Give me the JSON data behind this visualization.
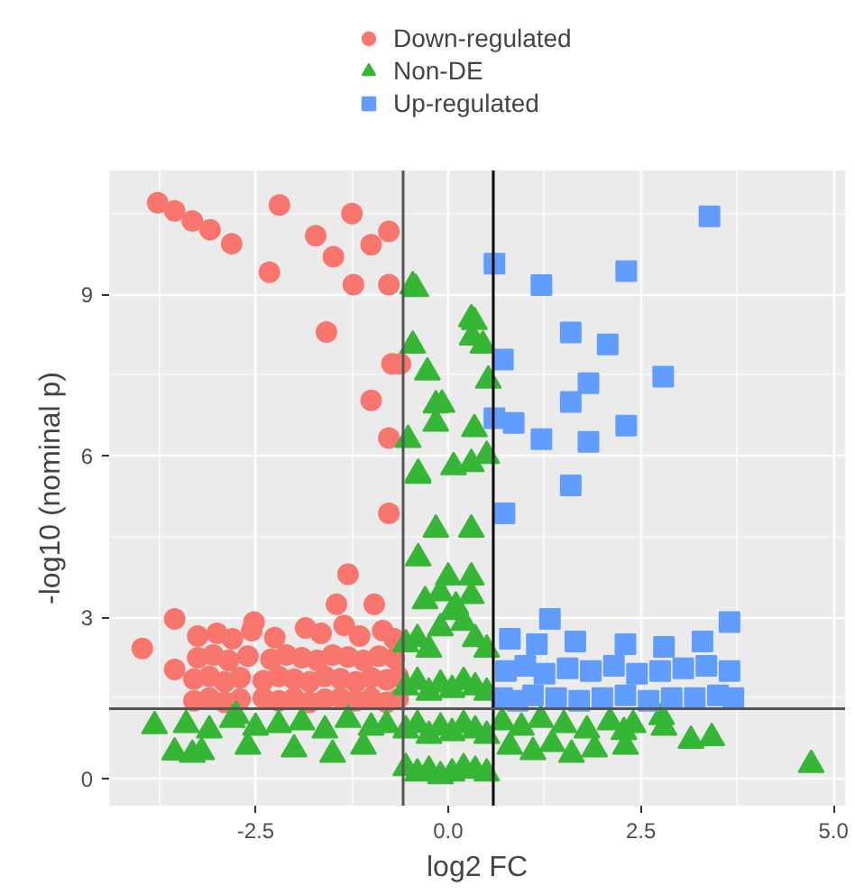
{
  "chart_data": {
    "type": "scatter",
    "xlabel": "log2 FC",
    "ylabel": "-log10 (nominal p)",
    "xlim": [
      -4.4,
      5.15
    ],
    "ylim": [
      -0.5,
      11.3
    ],
    "xticks": [
      {
        "value": -2.5,
        "label": "-2.5"
      },
      {
        "value": 0,
        "label": "0.0"
      },
      {
        "value": 2.5,
        "label": "2.5"
      },
      {
        "value": 5,
        "label": "5.0"
      }
    ],
    "yticks": [
      0,
      3,
      6,
      9
    ],
    "grid": true,
    "legend": "top",
    "ref_lines": [
      {
        "axis": "x",
        "value": -0.585,
        "label": null,
        "color": "#555555"
      },
      {
        "axis": "x",
        "value": 0.585,
        "label": null,
        "color": "#000000"
      },
      {
        "axis": "y",
        "value": 1.301,
        "label": null,
        "color": "#555555"
      }
    ],
    "series": [
      {
        "name": "Down-regulated",
        "color": "#f8766d",
        "marker": "circle",
        "x": [
          -3.77,
          -3.55,
          -3.32,
          -3.09,
          -2.81,
          -2.19,
          -2.32,
          -1.72,
          -1.49,
          -1.25,
          -1.0,
          -0.77,
          -1.23,
          -0.77,
          -1.58,
          -0.73,
          -0.62,
          -1.0,
          -0.77,
          -0.77,
          -1.3,
          -3.97,
          -3.55,
          -3.55,
          -2.52,
          -1.45,
          -0.96,
          -3.3,
          -3.1,
          -2.9,
          -2.7,
          -2.4,
          -2.2,
          -2.0,
          -1.8,
          -1.6,
          -1.4,
          -1.2,
          -1.0,
          -0.8,
          -0.65,
          -3.3,
          -3.1,
          -2.9,
          -2.7,
          -2.4,
          -2.2,
          -2.0,
          -1.8,
          -1.6,
          -1.4,
          -1.2,
          -1.0,
          -0.8,
          -0.65,
          -3.25,
          -3.05,
          -2.85,
          -2.6,
          -2.3,
          -2.1,
          -1.9,
          -1.7,
          -1.5,
          -1.3,
          -1.1,
          -0.9,
          -0.7,
          -3.25,
          -3.0,
          -2.8,
          -2.55,
          -2.25,
          -1.85,
          -1.65,
          -1.35,
          -1.15,
          -0.85,
          -0.7
        ],
        "values": [
          10.7,
          10.55,
          10.36,
          10.2,
          9.94,
          10.66,
          9.41,
          10.09,
          9.7,
          10.5,
          9.92,
          10.17,
          9.18,
          9.18,
          8.3,
          7.71,
          7.71,
          7.03,
          6.33,
          4.93,
          3.8,
          2.42,
          2.97,
          2.03,
          2.91,
          3.24,
          3.24,
          1.45,
          1.5,
          1.42,
          1.48,
          1.5,
          1.45,
          1.5,
          1.42,
          1.48,
          1.5,
          1.45,
          1.5,
          1.42,
          1.48,
          1.85,
          1.9,
          1.8,
          1.88,
          1.82,
          1.9,
          1.85,
          1.8,
          1.9,
          1.86,
          1.8,
          1.88,
          1.84,
          1.9,
          2.25,
          2.3,
          2.2,
          2.28,
          2.22,
          2.3,
          2.25,
          2.2,
          2.3,
          2.26,
          2.2,
          2.28,
          2.24,
          2.65,
          2.7,
          2.6,
          2.75,
          2.62,
          2.8,
          2.7,
          2.85,
          2.65,
          2.75,
          2.6
        ]
      },
      {
        "name": "Non-DE",
        "color": "#35b735",
        "marker": "triangle",
        "x": [
          -0.46,
          -0.42,
          0.3,
          0.31,
          0.45,
          -0.46,
          -0.27,
          -0.16,
          -0.16,
          0.34,
          0.52,
          -0.52,
          -0.39,
          0.07,
          0.3,
          0.34,
          0.5,
          -0.08,
          -0.39,
          -0.16,
          0.3,
          -0.39,
          0.0,
          0.3,
          4.71,
          -3.81,
          -3.55,
          -3.32,
          -2.75,
          3.15,
          3.42,
          2.77,
          2.28,
          -0.55,
          -0.4,
          -0.25,
          -0.1,
          0.05,
          0.2,
          0.35,
          0.5,
          -0.55,
          -0.4,
          -0.25,
          -0.1,
          0.05,
          0.2,
          0.35,
          0.5,
          -0.55,
          -0.4,
          -0.25,
          -0.1,
          0.05,
          0.2,
          0.35,
          0.5,
          -0.55,
          -0.4,
          -0.25,
          -0.1,
          0.05,
          0.2,
          0.35,
          0.5,
          -0.3,
          -0.1,
          0.1,
          0.3,
          -3.4,
          -3.1,
          -2.8,
          -2.5,
          -2.2,
          -1.9,
          -1.6,
          -1.3,
          -1.0,
          -0.8,
          -3.2,
          -2.6,
          -2.0,
          -1.5,
          -1.1,
          0.7,
          0.95,
          1.2,
          1.5,
          1.8,
          2.1,
          2.4,
          2.8,
          0.8,
          1.1,
          1.35,
          1.6,
          1.9,
          2.3
        ],
        "values": [
          9.15,
          9.1,
          8.54,
          8.2,
          8.05,
          8.05,
          7.55,
          6.94,
          6.6,
          6.5,
          7.4,
          6.3,
          5.67,
          5.79,
          5.85,
          8.49,
          6.0,
          6.95,
          5.63,
          4.63,
          4.63,
          4.1,
          3.74,
          3.74,
          0.26,
          0.98,
          0.49,
          0.45,
          1.17,
          0.71,
          0.76,
          1.15,
          0.87,
          0.2,
          0.1,
          0.15,
          0.05,
          0.1,
          0.2,
          0.15,
          0.1,
          0.9,
          1.0,
          0.8,
          0.95,
          0.85,
          1.0,
          0.9,
          0.8,
          1.7,
          1.8,
          1.6,
          1.75,
          1.65,
          1.8,
          1.7,
          1.6,
          2.5,
          2.6,
          2.4,
          2.8,
          3.1,
          2.9,
          2.6,
          2.4,
          3.3,
          3.45,
          3.2,
          3.4,
          1.0,
          0.9,
          1.1,
          0.95,
          1.0,
          1.05,
          0.9,
          1.1,
          0.95,
          1.0,
          0.5,
          0.6,
          0.55,
          0.45,
          0.6,
          1.05,
          0.95,
          1.1,
          1.0,
          0.9,
          1.05,
          1.0,
          0.95,
          0.6,
          0.5,
          0.65,
          0.45,
          0.55,
          0.6
        ]
      },
      {
        "name": "Up-regulated",
        "color": "#619cff",
        "marker": "square",
        "x": [
          3.39,
          0.6,
          1.21,
          2.31,
          1.59,
          2.07,
          0.71,
          2.79,
          1.82,
          1.59,
          0.6,
          0.85,
          1.21,
          1.82,
          2.31,
          1.59,
          0.73,
          1.32,
          3.65,
          0.7,
          0.9,
          1.1,
          1.4,
          1.7,
          2.0,
          2.3,
          2.6,
          2.9,
          3.2,
          3.5,
          3.7,
          0.75,
          1.0,
          1.25,
          1.55,
          1.85,
          2.15,
          2.45,
          2.75,
          3.05,
          3.35,
          3.65,
          0.8,
          1.15,
          1.65,
          2.3,
          2.8,
          3.3
        ],
        "values": [
          10.45,
          9.57,
          9.17,
          9.43,
          8.29,
          8.07,
          7.79,
          7.47,
          7.35,
          7.0,
          6.7,
          6.61,
          6.31,
          6.26,
          6.56,
          5.45,
          4.93,
          2.97,
          2.91,
          1.5,
          1.45,
          1.55,
          1.5,
          1.45,
          1.5,
          1.55,
          1.45,
          1.5,
          1.5,
          1.55,
          1.5,
          2.0,
          2.1,
          1.95,
          2.05,
          2.0,
          2.1,
          1.95,
          2.0,
          2.05,
          2.1,
          2.0,
          2.6,
          2.5,
          2.55,
          2.5,
          2.45,
          2.55
        ]
      }
    ]
  }
}
